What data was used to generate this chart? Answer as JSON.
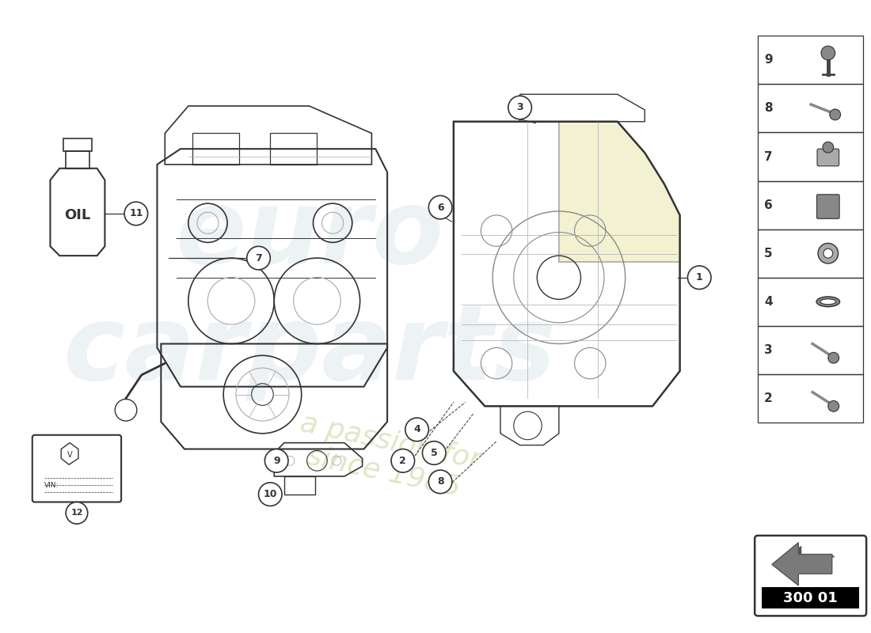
{
  "background_color": "#ffffff",
  "line_color": "#333333",
  "light_gray": "#aaaaaa",
  "mid_gray": "#888888",
  "dark_gray": "#444444",
  "catalog_number": "300 01",
  "right_panel_parts": [
    9,
    8,
    7,
    6,
    5,
    4,
    3,
    2
  ],
  "gearbox_circles": [
    [
      620,
      340,
      20
    ],
    [
      740,
      340,
      20
    ],
    [
      620,
      510,
      20
    ],
    [
      740,
      510,
      20
    ]
  ],
  "engine_circles": [
    [
      280,
      420,
      55
    ],
    [
      390,
      420,
      55
    ],
    [
      250,
      520,
      25
    ],
    [
      410,
      520,
      25
    ]
  ]
}
